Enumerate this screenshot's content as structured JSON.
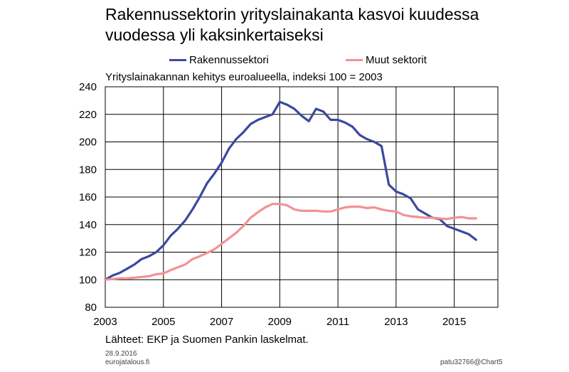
{
  "header": {
    "title_line1": "Rakennussektorin yrityslainakanta kasvoi kuudessa",
    "title_line2": "vuodessa yli kaksinkertaiseksi",
    "subtitle": "Yrityslainakannan kehitys euroalueella, indeksi 100 = 2003"
  },
  "legend": [
    {
      "label": "Rakennussektori",
      "color": "#3b48a0"
    },
    {
      "label": "Muut sektorit",
      "color": "#f29295"
    }
  ],
  "footer": {
    "source": "Lähteet: EKP ja Suomen Pankin laskelmat.",
    "date": "28.9.2016",
    "site": "eurojatalous.fi",
    "chart_id": "patu32766@Chart5"
  },
  "chart_data": {
    "type": "line",
    "title": "Rakennussektorin yrityslainakanta kasvoi kuudessa vuodessa yli kaksinkertaiseksi",
    "subtitle": "Yrityslainakannan kehitys euroalueella, indeksi 100 = 2003",
    "xlabel": "",
    "ylabel": "",
    "xlim": [
      2003,
      2016.5
    ],
    "ylim": [
      80,
      240
    ],
    "y_ticks": [
      80,
      100,
      120,
      140,
      160,
      180,
      200,
      220,
      240
    ],
    "x_ticks": [
      2003,
      2005,
      2007,
      2009,
      2011,
      2013,
      2015
    ],
    "x_grid": [
      2003,
      2005,
      2007,
      2009,
      2011,
      2013,
      2015
    ],
    "grid": true,
    "legend_position": "top",
    "series": [
      {
        "name": "Rakennussektori",
        "color": "#3b48a0",
        "points": [
          [
            2003.0,
            100
          ],
          [
            2003.25,
            103
          ],
          [
            2003.5,
            105
          ],
          [
            2003.75,
            108
          ],
          [
            2004.0,
            111
          ],
          [
            2004.25,
            115
          ],
          [
            2004.5,
            117
          ],
          [
            2004.75,
            120
          ],
          [
            2005.0,
            125
          ],
          [
            2005.25,
            132
          ],
          [
            2005.5,
            137
          ],
          [
            2005.75,
            143
          ],
          [
            2006.0,
            151
          ],
          [
            2006.25,
            160
          ],
          [
            2006.5,
            170
          ],
          [
            2006.75,
            177
          ],
          [
            2007.0,
            185
          ],
          [
            2007.25,
            195
          ],
          [
            2007.5,
            202
          ],
          [
            2007.75,
            207
          ],
          [
            2008.0,
            213
          ],
          [
            2008.25,
            216
          ],
          [
            2008.5,
            218
          ],
          [
            2008.75,
            220
          ],
          [
            2009.0,
            229
          ],
          [
            2009.25,
            227
          ],
          [
            2009.5,
            224
          ],
          [
            2009.75,
            219
          ],
          [
            2010.0,
            215
          ],
          [
            2010.25,
            224
          ],
          [
            2010.5,
            222
          ],
          [
            2010.75,
            216
          ],
          [
            2011.0,
            216
          ],
          [
            2011.25,
            214
          ],
          [
            2011.5,
            211
          ],
          [
            2011.75,
            205
          ],
          [
            2012.0,
            202
          ],
          [
            2012.25,
            200
          ],
          [
            2012.5,
            197
          ],
          [
            2012.75,
            169
          ],
          [
            2013.0,
            164
          ],
          [
            2013.25,
            162
          ],
          [
            2013.5,
            159
          ],
          [
            2013.75,
            151
          ],
          [
            2014.0,
            148
          ],
          [
            2014.25,
            145
          ],
          [
            2014.5,
            144
          ],
          [
            2014.75,
            139
          ],
          [
            2015.0,
            137
          ],
          [
            2015.25,
            135
          ],
          [
            2015.5,
            133
          ],
          [
            2015.75,
            129
          ]
        ]
      },
      {
        "name": "Muut sektorit",
        "color": "#f29295",
        "points": [
          [
            2003.0,
            100
          ],
          [
            2003.25,
            100.5
          ],
          [
            2003.5,
            101
          ],
          [
            2003.75,
            101
          ],
          [
            2004.0,
            101.5
          ],
          [
            2004.25,
            102
          ],
          [
            2004.5,
            102.5
          ],
          [
            2004.75,
            104
          ],
          [
            2005.0,
            104.5
          ],
          [
            2005.25,
            107
          ],
          [
            2005.5,
            109
          ],
          [
            2005.75,
            111
          ],
          [
            2006.0,
            115
          ],
          [
            2006.25,
            117
          ],
          [
            2006.5,
            119.5
          ],
          [
            2006.75,
            122
          ],
          [
            2007.0,
            126
          ],
          [
            2007.25,
            130
          ],
          [
            2007.5,
            134
          ],
          [
            2007.75,
            139
          ],
          [
            2008.0,
            145
          ],
          [
            2008.25,
            149
          ],
          [
            2008.5,
            152.5
          ],
          [
            2008.75,
            155
          ],
          [
            2009.0,
            155
          ],
          [
            2009.25,
            154
          ],
          [
            2009.5,
            151
          ],
          [
            2009.75,
            150
          ],
          [
            2010.0,
            150
          ],
          [
            2010.25,
            150
          ],
          [
            2010.5,
            149.5
          ],
          [
            2010.75,
            149.5
          ],
          [
            2011.0,
            151
          ],
          [
            2011.25,
            152.5
          ],
          [
            2011.5,
            153
          ],
          [
            2011.75,
            153
          ],
          [
            2012.0,
            152
          ],
          [
            2012.25,
            152.5
          ],
          [
            2012.5,
            151
          ],
          [
            2012.75,
            150
          ],
          [
            2013.0,
            149.5
          ],
          [
            2013.25,
            147
          ],
          [
            2013.5,
            146
          ],
          [
            2013.75,
            145.5
          ],
          [
            2014.0,
            145
          ],
          [
            2014.25,
            145
          ],
          [
            2014.5,
            144.5
          ],
          [
            2014.75,
            144
          ],
          [
            2015.0,
            145
          ],
          [
            2015.25,
            145.5
          ],
          [
            2015.5,
            144.5
          ],
          [
            2015.75,
            144.5
          ]
        ]
      }
    ]
  }
}
